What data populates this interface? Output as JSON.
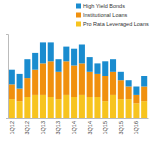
{
  "chart_data": {
    "type": "bar",
    "stacked": true,
    "legend": "top-right",
    "tick_labels": "x",
    "grid": false,
    "categories": [
      "1Q12",
      null,
      "3Q12",
      null,
      "1Q13",
      null,
      "3Q13",
      null,
      "1Q14",
      null,
      "3Q14",
      null,
      "1Q15",
      null,
      "3Q15",
      null,
      "1Q16",
      null
    ],
    "ylim": [
      0,
      80
    ],
    "yticks": [],
    "series": [
      {
        "name": "Pro Rata Leveraged Loans",
        "color": "#f7c41f",
        "values": [
          18,
          16,
          20,
          22,
          22,
          20,
          18,
          22,
          20,
          22,
          20,
          20,
          16,
          22,
          18,
          18,
          14,
          16
        ]
      },
      {
        "name": "Institutional Loans",
        "color": "#f0900e",
        "values": [
          14,
          12,
          18,
          24,
          30,
          34,
          26,
          32,
          30,
          30,
          24,
          22,
          24,
          22,
          18,
          12,
          8,
          14
        ]
      },
      {
        "name": "High Yield Bonds",
        "color": "#1a8ccf",
        "values": [
          14,
          14,
          18,
          16,
          20,
          18,
          12,
          14,
          16,
          18,
          14,
          10,
          14,
          12,
          8,
          6,
          8,
          10
        ]
      }
    ]
  }
}
